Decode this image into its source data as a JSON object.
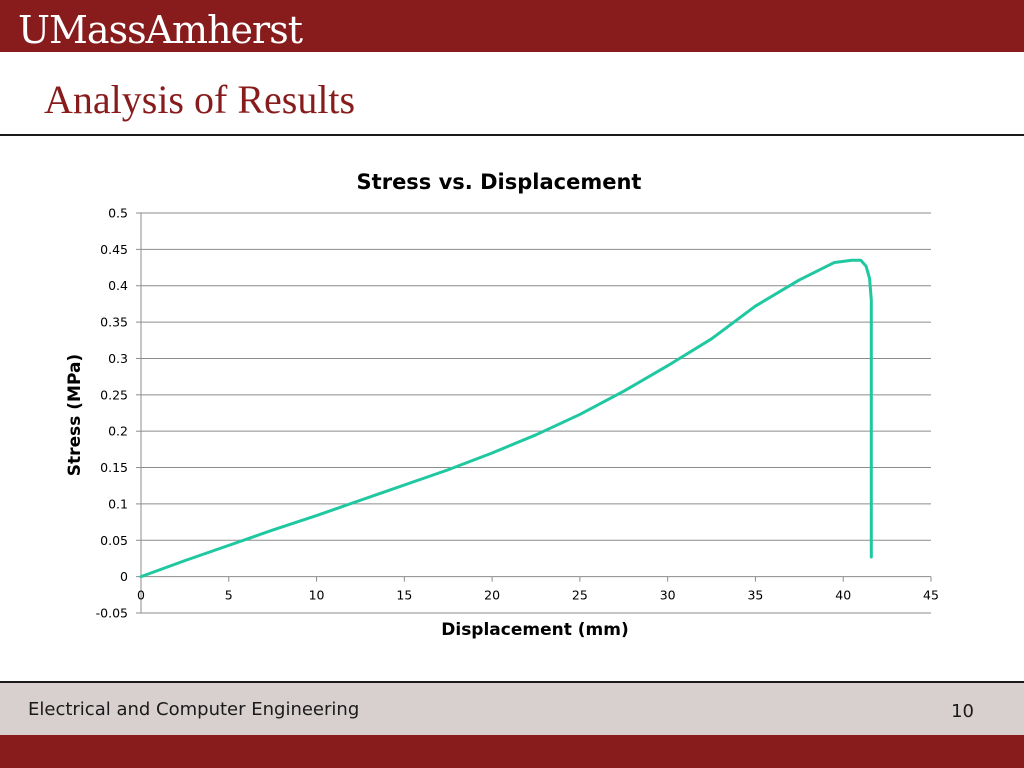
{
  "header": {
    "logo_text": "UMassAmherst",
    "brand_color": "#881c1c"
  },
  "slide": {
    "title": "Analysis of Results"
  },
  "chart_data": {
    "type": "line",
    "title": "Stress vs. Displacement",
    "xlabel": "Displacement (mm)",
    "ylabel": "Stress (MPa)",
    "xlim": [
      0,
      45
    ],
    "ylim": [
      -0.05,
      0.5
    ],
    "x_ticks": [
      0,
      5,
      10,
      15,
      20,
      25,
      30,
      35,
      40,
      45
    ],
    "y_ticks": [
      -0.05,
      0,
      0.05,
      0.1,
      0.15,
      0.2,
      0.25,
      0.3,
      0.35,
      0.4,
      0.45,
      0.5
    ],
    "x_tick_labels": [
      "0",
      "5",
      "10",
      "15",
      "20",
      "25",
      "30",
      "35",
      "40",
      "45"
    ],
    "y_tick_labels": [
      "-0.05",
      "0",
      "0.05",
      "0.1",
      "0.15",
      "0.2",
      "0.25",
      "0.3",
      "0.35",
      "0.4",
      "0.45",
      "0.5"
    ],
    "grid": true,
    "legend": "none",
    "series": [
      {
        "color": "#1fc8a0",
        "x": [
          0,
          2.5,
          5,
          7.5,
          10,
          12.5,
          15,
          17.5,
          20,
          22.5,
          25,
          27.5,
          30,
          32.5,
          35,
          37.5,
          39.5,
          40.5,
          41,
          41.3,
          41.5,
          41.6,
          41.6,
          41.6
        ],
        "y": [
          0,
          0.022,
          0.043,
          0.064,
          0.084,
          0.105,
          0.126,
          0.147,
          0.17,
          0.195,
          0.223,
          0.255,
          0.29,
          0.327,
          0.372,
          0.408,
          0.432,
          0.435,
          0.435,
          0.427,
          0.41,
          0.38,
          0.2,
          0.027
        ]
      }
    ]
  },
  "footer": {
    "department": "Electrical and Computer Engineering",
    "page_number": "10"
  }
}
